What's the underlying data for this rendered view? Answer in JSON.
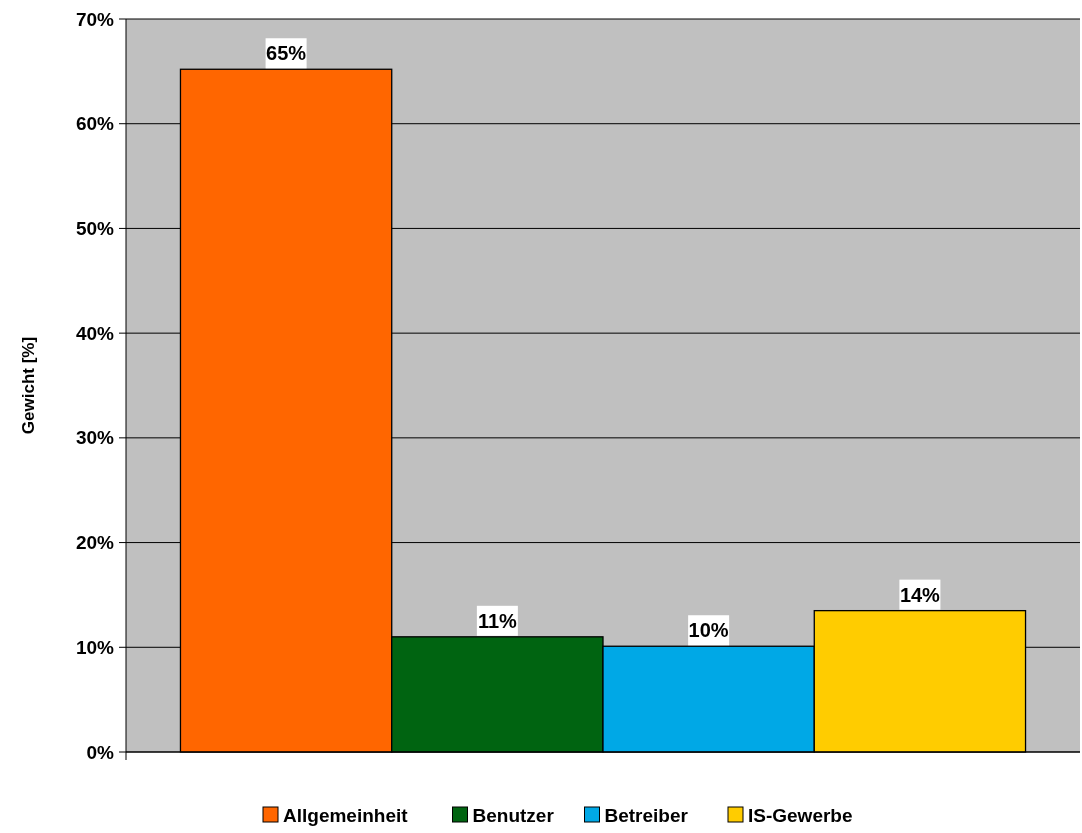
{
  "chart_data": {
    "type": "bar",
    "ylabel": "Gewicht [%]",
    "categories": [
      null
    ],
    "series": [
      {
        "name": "Allgemeinheit",
        "color": "#ff6600",
        "values": [
          65.2
        ],
        "value_labels": [
          "65%"
        ]
      },
      {
        "name": "Benutzer",
        "color": "#006411",
        "values": [
          11.0
        ],
        "value_labels": [
          "11%"
        ]
      },
      {
        "name": "Betreiber",
        "color": "#00a8e6",
        "values": [
          10.1
        ],
        "value_labels": [
          "10%"
        ]
      },
      {
        "name": "IS-Gewerbe",
        "color": "#ffcc00",
        "values": [
          13.5
        ],
        "value_labels": [
          "14%"
        ]
      }
    ],
    "ylim": [
      0,
      70
    ],
    "yticks": [
      {
        "value": 0,
        "label": "0%"
      },
      {
        "value": 10,
        "label": "10%"
      },
      {
        "value": 20,
        "label": "20%"
      },
      {
        "value": 30,
        "label": "30%"
      },
      {
        "value": 40,
        "label": "40%"
      },
      {
        "value": 50,
        "label": "50%"
      },
      {
        "value": 60,
        "label": "60%"
      },
      {
        "value": 70,
        "label": "70%"
      }
    ],
    "grid": "y",
    "legend": "bottom"
  }
}
